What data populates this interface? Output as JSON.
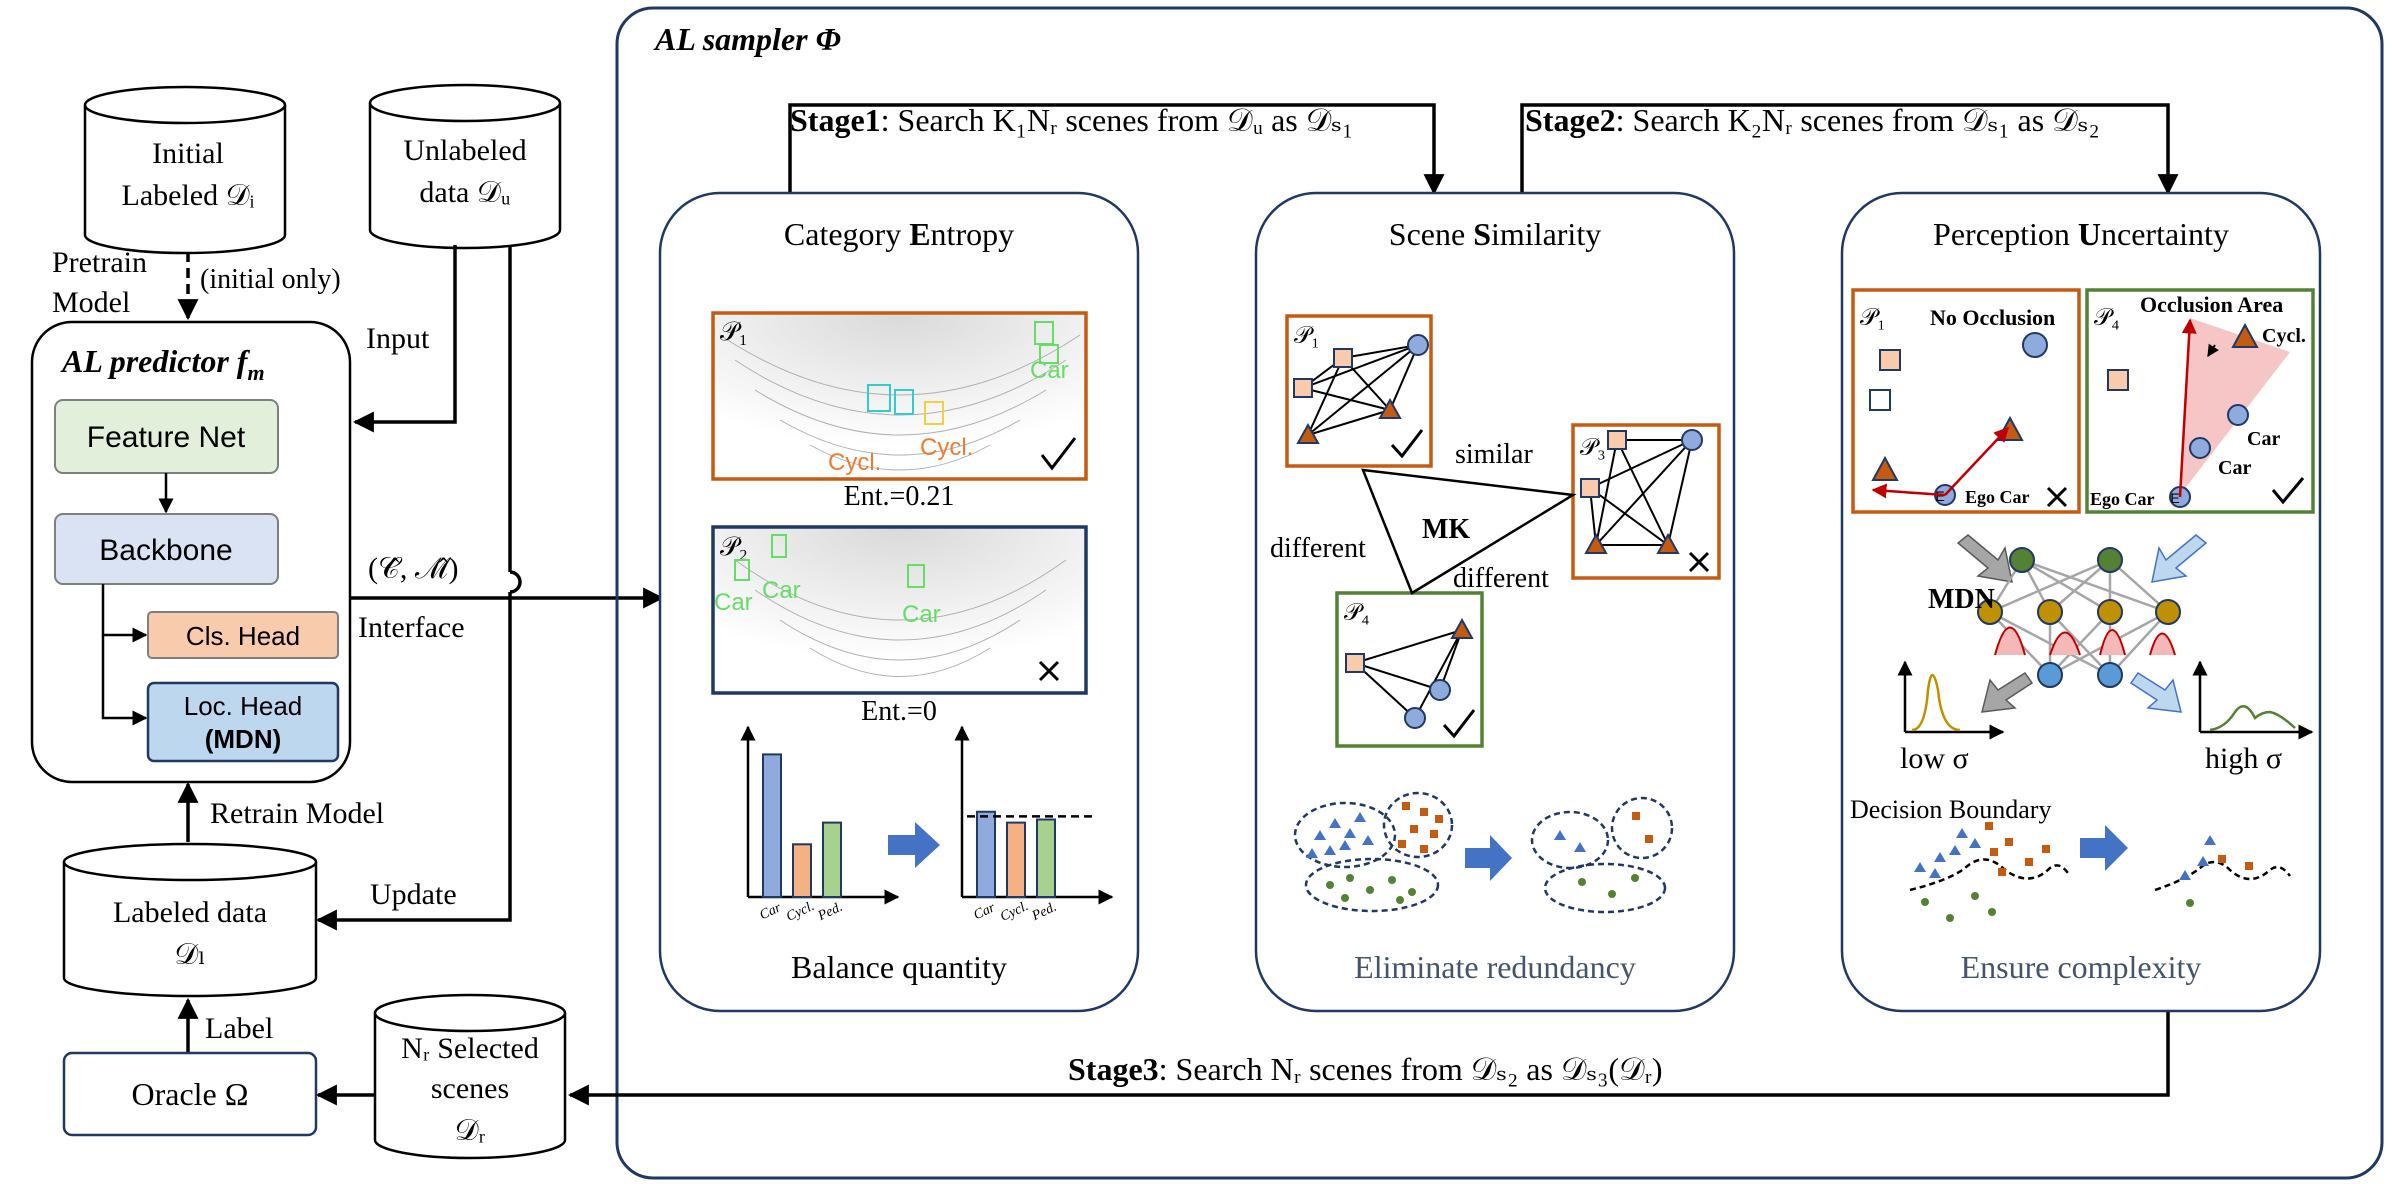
{
  "predictor": {
    "initial_db_line1": "Initial",
    "initial_db_line2": "Labeled 𝒟ᵢ",
    "unlabeled_db_line1": "Unlabeled",
    "unlabeled_db_line2": "data 𝒟ᵤ",
    "pretrain_line1": "Pretrain",
    "pretrain_line2": "Model",
    "initial_only": "(initial only)",
    "input_label": "Input",
    "title": "AL predictor f",
    "title_sub": "m",
    "feature_net": "Feature Net",
    "backbone": "Backbone",
    "cls_head": "Cls. Head",
    "loc_head_line1": "Loc. Head",
    "loc_head_line2": "(MDN)",
    "interface_math": "(𝒞̂, ℳ̂)",
    "interface_label": "Interface",
    "retrain_label": "Retrain Model",
    "update_label": "Update",
    "labeled_db_line1": "Labeled data",
    "labeled_db_line2": "𝒟ₗ",
    "label_label": "Label",
    "oracle": "Oracle Ω",
    "selected_db_line1": "Nᵣ Selected",
    "selected_db_line2": "scenes",
    "selected_db_line3": "𝒟ᵣ"
  },
  "sampler": {
    "title": "AL sampler Φ",
    "stage1_bold": "Stage1",
    "stage1_text": ": Search K₁Nᵣ scenes from 𝒟ᵤ as 𝒟ₛ₁",
    "stage2_bold": "Stage2",
    "stage2_text": ": Search K₂Nᵣ scenes from 𝒟ₛ₁ as 𝒟ₛ₂",
    "stage3_bold": "Stage3",
    "stage3_text": ": Search Nᵣ scenes from 𝒟ₛ₂ as  𝒟ₛ₃(𝒟ᵣ)"
  },
  "entropy_panel": {
    "title_pre": "Category ",
    "title_bold": "E",
    "title_post": "ntropy",
    "p1_label": "𝒫₁",
    "p2_label": "𝒫₂",
    "ent1": "Ent.=0.21",
    "ent2": "Ent.=0",
    "box_labels_p1": [
      "Car",
      "Cycl.",
      "Cycl."
    ],
    "box_labels_p2": [
      "Car",
      "Car",
      "Car"
    ],
    "bar_categories": [
      "Car",
      "Cycl.",
      "Ped."
    ],
    "bars_before": [
      0.92,
      0.34,
      0.48
    ],
    "bars_after": [
      0.55,
      0.48,
      0.5
    ],
    "balance_line": 0.52,
    "caption": "Balance quantity",
    "colors": {
      "car": "#8faadc",
      "cycl": "#f4b183",
      "ped": "#a9d18e",
      "arrow": "#4472c4"
    }
  },
  "similarity_panel": {
    "title_pre": "Scene ",
    "title_bold": "S",
    "title_post": "imilarity",
    "p1_label": "𝒫₁",
    "p3_label": "𝒫₃",
    "p4_label": "𝒫₄",
    "similar": "similar",
    "different_left": "different",
    "different_right": "different",
    "mk": "MK",
    "caption": "Eliminate redundancy"
  },
  "uncertainty_panel": {
    "title_pre": "Perception ",
    "title_bold": "U",
    "title_post": "ncertainty",
    "p1_label": "𝒫₁",
    "p4_label": "𝒫₄",
    "no_occlusion": "No Occlusion",
    "occlusion_area": "Occlusion Area",
    "cycl": "Cycl.",
    "car1": "Car",
    "car2": "Car",
    "ego_car_left": "Ego Car",
    "ego_car_right": "Ego Car",
    "ego_mark": "E",
    "mdn": "MDN",
    "low_sigma": "low σ",
    "high_sigma": "high σ",
    "decision_boundary": "Decision Boundary",
    "caption": "Ensure complexity"
  },
  "colors": {
    "orange_frame": "#c55a11",
    "navy_frame": "#1f3864",
    "green_frame": "#548235",
    "feature_net_fill": "#e2efda",
    "backbone_fill": "#dae3f3",
    "cls_fill": "#f8cbad",
    "loc_fill": "#bdd7ee",
    "caption_gray": "#44546a"
  }
}
